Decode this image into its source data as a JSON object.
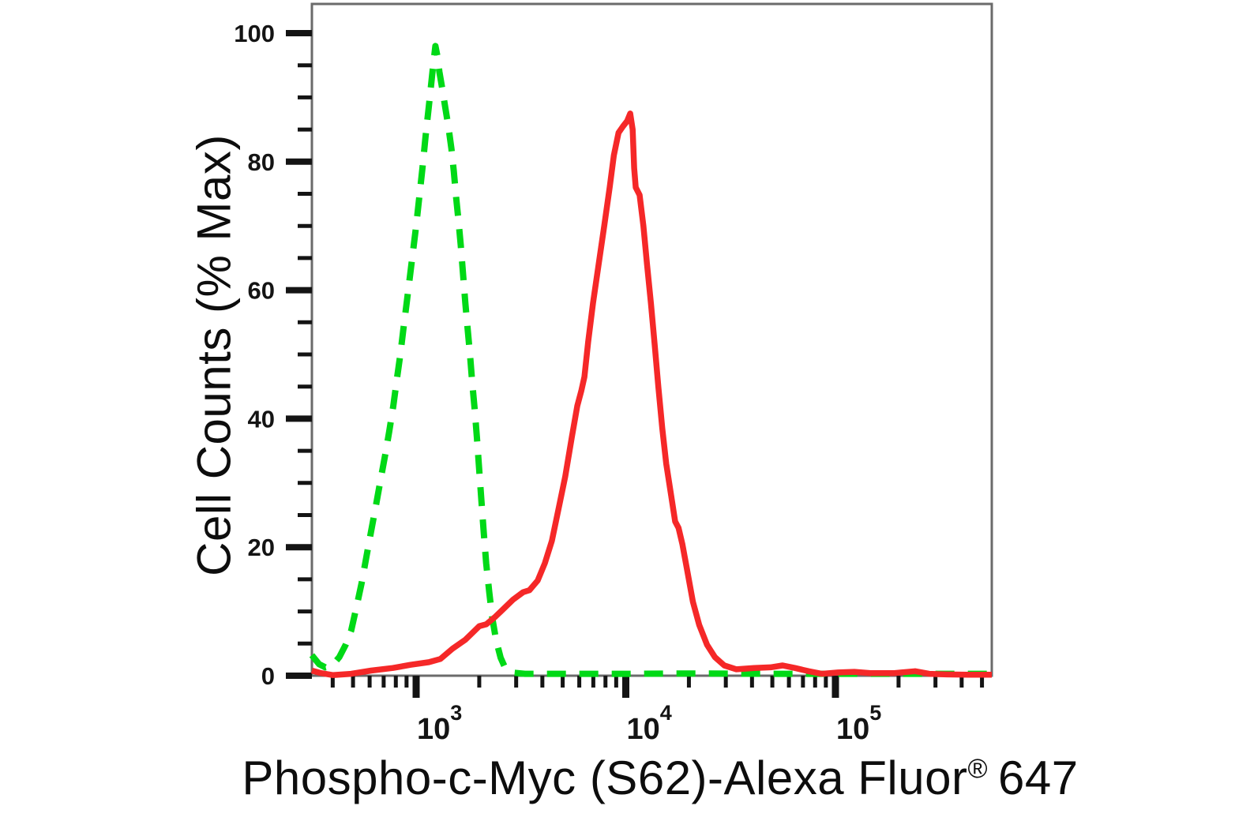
{
  "figure": {
    "description": "flow cytometry overlay histogram"
  },
  "chart_data": {
    "type": "line",
    "subtype": "flow-cytometry-histogram-overlay",
    "title": "",
    "xlabel": "Phospho-c-Myc (S62)-Alexa Fluor® 647",
    "xlabel_main": "Phospho-c-Myc (S62)-Alexa Fluor",
    "xlabel_registered": "®",
    "xlabel_suffix": "647",
    "ylabel": "Cell Counts (% Max)",
    "x_scale": "log10",
    "x_range": [
      318,
      557000
    ],
    "y_range": [
      0,
      104
    ],
    "grid": false,
    "legend": "none",
    "y_ticks": [
      0,
      20,
      40,
      60,
      80,
      100
    ],
    "y_minor_step": 5,
    "x_major_ticks": [
      1000,
      10000,
      100000
    ],
    "x_tick_exponents": [
      "3",
      "4",
      "5"
    ],
    "x_tick_base": "10",
    "axis_color": "#6b6b6b",
    "tick_color": "#141414",
    "series": [
      {
        "id": "green-dashed",
        "color": "#00d916",
        "line_style": "dashed",
        "peak": {
          "x": 1236,
          "y": 98
        },
        "points": [
          [
            318,
            3.2
          ],
          [
            344,
            1.8
          ],
          [
            369,
            1.3
          ],
          [
            398,
            1.6
          ],
          [
            430,
            2.9
          ],
          [
            461,
            4.8
          ],
          [
            490,
            7
          ],
          [
            522,
            11
          ],
          [
            550,
            14.5
          ],
          [
            579,
            18.5
          ],
          [
            610,
            22.5
          ],
          [
            643,
            26.5
          ],
          [
            677,
            30.5
          ],
          [
            713,
            34.5
          ],
          [
            744,
            38
          ],
          [
            778,
            42
          ],
          [
            812,
            46.5
          ],
          [
            841,
            50
          ],
          [
            870,
            54
          ],
          [
            901,
            58
          ],
          [
            933,
            62
          ],
          [
            966,
            66
          ],
          [
            1000,
            70
          ],
          [
            1035,
            74.5
          ],
          [
            1072,
            79
          ],
          [
            1110,
            84
          ],
          [
            1149,
            88.5
          ],
          [
            1179,
            92
          ],
          [
            1210,
            95.5
          ],
          [
            1236,
            98
          ],
          [
            1262,
            96.5
          ],
          [
            1290,
            94
          ],
          [
            1330,
            91.5
          ],
          [
            1376,
            88.5
          ],
          [
            1424,
            85.5
          ],
          [
            1474,
            82
          ],
          [
            1512,
            78.5
          ],
          [
            1551,
            74.5
          ],
          [
            1591,
            71
          ],
          [
            1632,
            67
          ],
          [
            1674,
            62.5
          ],
          [
            1717,
            58
          ],
          [
            1761,
            54
          ],
          [
            1806,
            50
          ],
          [
            1853,
            45.5
          ],
          [
            1901,
            41.5
          ],
          [
            1950,
            37
          ],
          [
            2000,
            32
          ],
          [
            2051,
            27
          ],
          [
            2104,
            22
          ],
          [
            2158,
            17.5
          ],
          [
            2232,
            13
          ],
          [
            2308,
            9
          ],
          [
            2407,
            5.5
          ],
          [
            2530,
            2.8
          ],
          [
            2660,
            1.2
          ],
          [
            2840,
            0.5
          ],
          [
            3300,
            0.3
          ],
          [
            5000,
            0.3
          ],
          [
            10000,
            0.3
          ],
          [
            20000,
            0.35
          ],
          [
            50000,
            0.3
          ],
          [
            100000,
            0.3
          ],
          [
            250000,
            0.3
          ],
          [
            557000,
            0.3
          ]
        ]
      },
      {
        "id": "red-solid",
        "color": "#f52828",
        "line_style": "solid",
        "peak": {
          "x": 10500,
          "y": 87.5
        },
        "points": [
          [
            318,
            0.8
          ],
          [
            352,
            0.4
          ],
          [
            400,
            0.1
          ],
          [
            490,
            0.3
          ],
          [
            610,
            0.8
          ],
          [
            775,
            1.2
          ],
          [
            940,
            1.7
          ],
          [
            1150,
            2.1
          ],
          [
            1305,
            2.6
          ],
          [
            1490,
            4.2
          ],
          [
            1717,
            5.6
          ],
          [
            2000,
            7.7
          ],
          [
            2160,
            8.0
          ],
          [
            2390,
            9.2
          ],
          [
            2630,
            10.5
          ],
          [
            2890,
            11.8
          ],
          [
            3240,
            13.0
          ],
          [
            3470,
            13.3
          ],
          [
            3800,
            14.8
          ],
          [
            4110,
            17.5
          ],
          [
            4440,
            21
          ],
          [
            4780,
            26
          ],
          [
            5140,
            31
          ],
          [
            5520,
            37
          ],
          [
            5870,
            42
          ],
          [
            6130,
            44.3
          ],
          [
            6350,
            46.5
          ],
          [
            6620,
            52
          ],
          [
            6980,
            58
          ],
          [
            7420,
            64
          ],
          [
            7890,
            70
          ],
          [
            8380,
            76
          ],
          [
            8770,
            81
          ],
          [
            9230,
            84.5
          ],
          [
            9700,
            85.5
          ],
          [
            10140,
            86.3
          ],
          [
            10500,
            87.5
          ],
          [
            10780,
            85
          ],
          [
            10960,
            79
          ],
          [
            11150,
            76
          ],
          [
            11640,
            74.8
          ],
          [
            12130,
            70
          ],
          [
            12630,
            64
          ],
          [
            13180,
            58
          ],
          [
            13730,
            51.5
          ],
          [
            14300,
            45
          ],
          [
            14930,
            38.5
          ],
          [
            15590,
            33
          ],
          [
            16470,
            28
          ],
          [
            17200,
            24
          ],
          [
            17850,
            23
          ],
          [
            18600,
            20.5
          ],
          [
            19600,
            16.5
          ],
          [
            20900,
            11.5
          ],
          [
            22400,
            7.9
          ],
          [
            24400,
            4.8
          ],
          [
            26600,
            2.9
          ],
          [
            29500,
            1.6
          ],
          [
            33700,
            1.0
          ],
          [
            41000,
            1.2
          ],
          [
            49000,
            1.3
          ],
          [
            56000,
            1.6
          ],
          [
            64000,
            1.2
          ],
          [
            74500,
            0.7
          ],
          [
            86000,
            0.3
          ],
          [
            103000,
            0.5
          ],
          [
            123000,
            0.6
          ],
          [
            147000,
            0.4
          ],
          [
            191000,
            0.4
          ],
          [
            240000,
            0.7
          ],
          [
            280000,
            0.3
          ],
          [
            340000,
            0.2
          ],
          [
            430000,
            0.15
          ],
          [
            557000,
            0.15
          ]
        ]
      }
    ]
  }
}
